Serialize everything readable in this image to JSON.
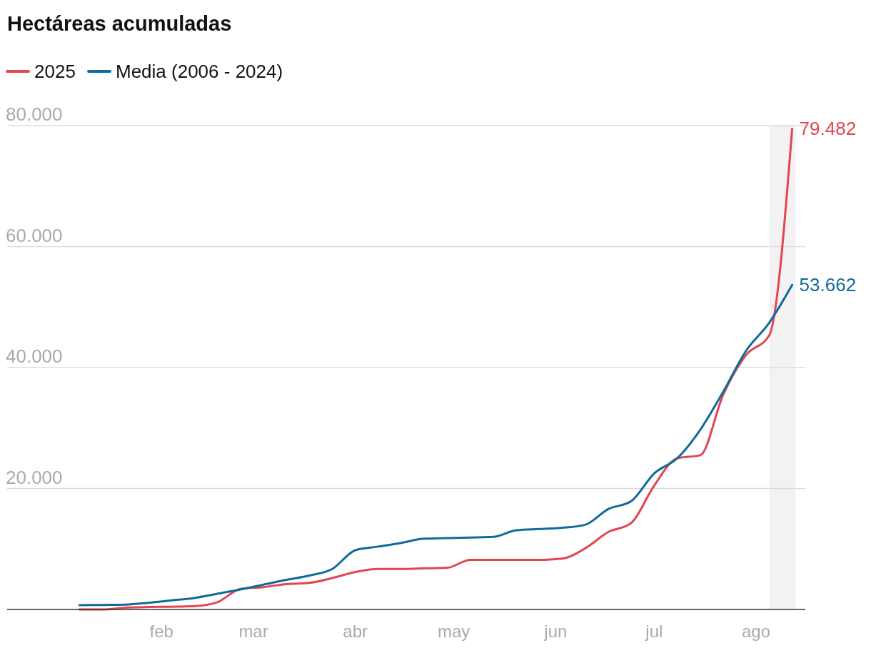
{
  "chart_data": {
    "type": "line",
    "title": "Hectáreas acumuladas",
    "x": [
      "2025-01-07",
      "2025-01-14",
      "2025-01-21",
      "2025-01-28",
      "2025-02-04",
      "2025-02-11",
      "2025-02-18",
      "2025-02-25",
      "2025-03-04",
      "2025-03-11",
      "2025-03-18",
      "2025-03-25",
      "2025-04-01",
      "2025-04-08",
      "2025-04-15",
      "2025-04-22",
      "2025-04-29",
      "2025-05-06",
      "2025-05-13",
      "2025-05-20",
      "2025-05-27",
      "2025-06-03",
      "2025-06-10",
      "2025-06-17",
      "2025-06-24",
      "2025-07-01",
      "2025-07-08",
      "2025-07-15",
      "2025-07-22",
      "2025-07-29",
      "2025-08-05",
      "2025-08-12"
    ],
    "series": [
      {
        "name": "2025",
        "color": "#e3454f",
        "values": [
          0,
          0,
          300,
          400,
          450,
          550,
          1200,
          3400,
          3700,
          4200,
          4400,
          5200,
          6200,
          6700,
          6700,
          6800,
          6900,
          8200,
          8200,
          8200,
          8200,
          8400,
          10100,
          12800,
          14300,
          20500,
          25000,
          25500,
          35500,
          42100,
          45300,
          79482
        ],
        "value_labels": [
          null,
          null,
          null,
          null,
          null,
          null,
          null,
          null,
          null,
          null,
          null,
          null,
          null,
          null,
          null,
          null,
          null,
          null,
          null,
          null,
          null,
          null,
          null,
          null,
          null,
          null,
          null,
          null,
          null,
          null,
          null,
          "79.482"
        ]
      },
      {
        "name": "Media (2006 - 2024)",
        "color": "#106a9a",
        "values": [
          700,
          750,
          800,
          1100,
          1500,
          1900,
          2600,
          3300,
          4100,
          4900,
          5600,
          6700,
          9800,
          10400,
          11000,
          11700,
          11800,
          11900,
          12000,
          13100,
          13300,
          13500,
          14000,
          16600,
          17900,
          22500,
          25000,
          29700,
          36000,
          42800,
          47400,
          53662
        ],
        "value_labels": [
          null,
          null,
          null,
          null,
          null,
          null,
          null,
          null,
          null,
          null,
          null,
          null,
          null,
          null,
          null,
          null,
          null,
          null,
          null,
          null,
          null,
          null,
          null,
          null,
          null,
          null,
          null,
          null,
          null,
          null,
          null,
          "53.662"
        ]
      }
    ],
    "xlim": [
      "2024-12-16",
      "2025-08-16"
    ],
    "xticks": [
      {
        "value": "2025-02-01",
        "label": "feb"
      },
      {
        "value": "2025-03-01",
        "label": "mar"
      },
      {
        "value": "2025-04-01",
        "label": "abr"
      },
      {
        "value": "2025-05-01",
        "label": "may"
      },
      {
        "value": "2025-06-01",
        "label": "jun"
      },
      {
        "value": "2025-07-01",
        "label": "jul"
      },
      {
        "value": "2025-08-01",
        "label": "ago"
      }
    ],
    "ylim": [
      0,
      80000
    ],
    "yticks": [
      {
        "value": 0,
        "label": null
      },
      {
        "value": 20000,
        "label": "20.000"
      },
      {
        "value": 40000,
        "label": "40.000"
      },
      {
        "value": 60000,
        "label": "60.000"
      },
      {
        "value": 80000,
        "label": "80.000"
      }
    ],
    "bands": [
      {
        "axis": "x",
        "from": "2025-08-05",
        "to": "2025-08-13",
        "color": "#f2f2f2"
      }
    ],
    "grid": "y",
    "legend": "top left",
    "marker": "none",
    "line_style": "solid"
  }
}
